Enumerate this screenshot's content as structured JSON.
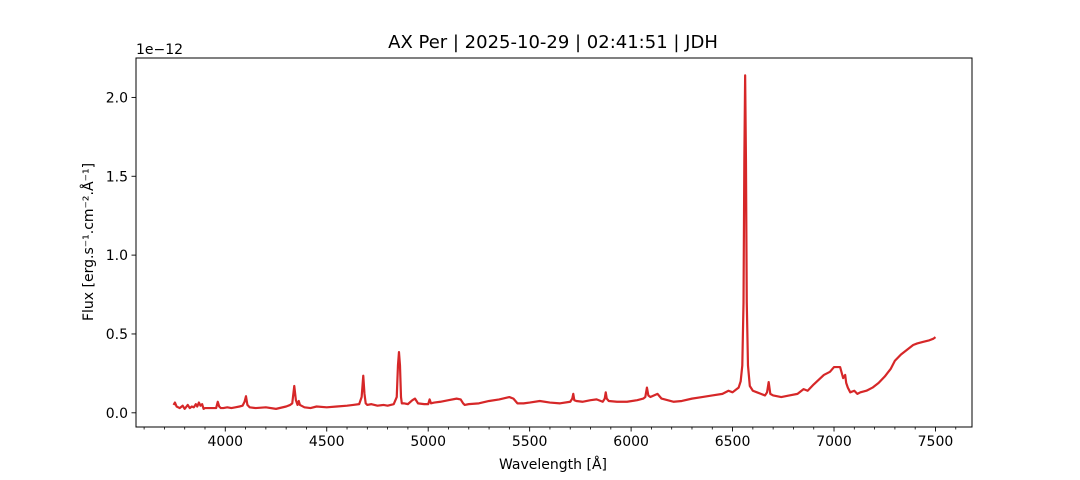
{
  "chart_data": {
    "type": "line",
    "title": "AX Per | 2025-10-29 | 02:41:51 | JDH",
    "xlabel": "Wavelength [Å]",
    "ylabel": "Flux [erg.s⁻¹.cm⁻².Å⁻¹]",
    "offset_text": "1e−12",
    "xlim": [
      3560,
      7680
    ],
    "ylim": [
      -0.09,
      2.25
    ],
    "xticks": [
      4000,
      4500,
      5000,
      5500,
      6000,
      6500,
      7000,
      7500
    ],
    "xtick_labels": [
      "4000",
      "4500",
      "5000",
      "5500",
      "6000",
      "6500",
      "7000",
      "7500"
    ],
    "yticks": [
      0.0,
      0.5,
      1.0,
      1.5,
      2.0
    ],
    "ytick_labels": [
      "0.0",
      "0.5",
      "1.0",
      "1.5",
      "2.0"
    ],
    "x_minor_step": 100,
    "grid": false,
    "line_color": "#d62728",
    "series": [
      {
        "x": [
          3745,
          3752,
          3760,
          3775,
          3790,
          3800,
          3815,
          3825,
          3835,
          3845,
          3855,
          3862,
          3870,
          3878,
          3886,
          3893,
          3900,
          3920,
          3940,
          3955,
          3963,
          3970,
          3978,
          3990,
          4010,
          4030,
          4050,
          4070,
          4085,
          4095,
          4102,
          4109,
          4120,
          4150,
          4200,
          4250,
          4300,
          4320,
          4330,
          4340,
          4348,
          4356,
          4362,
          4368,
          4375,
          4390,
          4420,
          4450,
          4500,
          4550,
          4600,
          4630,
          4660,
          4672,
          4680,
          4686,
          4692,
          4700,
          4720,
          4750,
          4780,
          4800,
          4830,
          4845,
          4851,
          4856,
          4861,
          4866,
          4870,
          4880,
          4900,
          4922,
          4935,
          4950,
          4980,
          5000,
          5007,
          5014,
          5030,
          5060,
          5100,
          5140,
          5160,
          5172,
          5180,
          5200,
          5250,
          5300,
          5350,
          5400,
          5420,
          5440,
          5470,
          5500,
          5550,
          5600,
          5650,
          5700,
          5710,
          5715,
          5720,
          5730,
          5760,
          5800,
          5830,
          5860,
          5870,
          5875,
          5880,
          5890,
          5930,
          5980,
          6030,
          6060,
          6070,
          6078,
          6085,
          6095,
          6130,
          6150,
          6180,
          6210,
          6250,
          6300,
          6350,
          6400,
          6450,
          6480,
          6500,
          6520,
          6530,
          6540,
          6548,
          6554,
          6558,
          6562,
          6566,
          6570,
          6576,
          6585,
          6600,
          6620,
          6640,
          6660,
          6670,
          6678,
          6686,
          6700,
          6740,
          6780,
          6820,
          6850,
          6870,
          6900,
          6950,
          6980,
          7000,
          7030,
          7045,
          7055,
          7060,
          7068,
          7080,
          7100,
          7115,
          7130,
          7160,
          7190,
          7220,
          7250,
          7280,
          7300,
          7330,
          7360,
          7390,
          7410,
          7440,
          7470,
          7490,
          7500
        ],
        "y": [
          0.05,
          0.065,
          0.04,
          0.03,
          0.045,
          0.025,
          0.05,
          0.03,
          0.04,
          0.035,
          0.055,
          0.04,
          0.065,
          0.045,
          0.055,
          0.025,
          0.03,
          0.03,
          0.03,
          0.03,
          0.07,
          0.04,
          0.03,
          0.03,
          0.035,
          0.03,
          0.035,
          0.04,
          0.045,
          0.07,
          0.105,
          0.05,
          0.035,
          0.03,
          0.035,
          0.025,
          0.04,
          0.05,
          0.06,
          0.17,
          0.08,
          0.05,
          0.075,
          0.05,
          0.045,
          0.035,
          0.03,
          0.04,
          0.035,
          0.04,
          0.045,
          0.05,
          0.055,
          0.1,
          0.235,
          0.12,
          0.06,
          0.05,
          0.055,
          0.045,
          0.05,
          0.045,
          0.055,
          0.1,
          0.3,
          0.385,
          0.3,
          0.1,
          0.06,
          0.06,
          0.055,
          0.08,
          0.09,
          0.06,
          0.055,
          0.055,
          0.085,
          0.06,
          0.065,
          0.07,
          0.08,
          0.09,
          0.085,
          0.06,
          0.05,
          0.055,
          0.06,
          0.075,
          0.085,
          0.1,
          0.09,
          0.06,
          0.06,
          0.065,
          0.075,
          0.065,
          0.06,
          0.07,
          0.09,
          0.12,
          0.08,
          0.075,
          0.07,
          0.08,
          0.085,
          0.07,
          0.09,
          0.13,
          0.09,
          0.075,
          0.07,
          0.07,
          0.08,
          0.09,
          0.1,
          0.16,
          0.11,
          0.1,
          0.12,
          0.09,
          0.08,
          0.07,
          0.075,
          0.09,
          0.1,
          0.11,
          0.12,
          0.14,
          0.13,
          0.15,
          0.16,
          0.2,
          0.3,
          0.7,
          1.6,
          2.14,
          1.6,
          0.7,
          0.3,
          0.17,
          0.14,
          0.13,
          0.12,
          0.11,
          0.13,
          0.195,
          0.12,
          0.11,
          0.1,
          0.11,
          0.12,
          0.15,
          0.14,
          0.18,
          0.24,
          0.26,
          0.29,
          0.29,
          0.22,
          0.24,
          0.19,
          0.16,
          0.13,
          0.14,
          0.12,
          0.13,
          0.14,
          0.16,
          0.19,
          0.23,
          0.28,
          0.33,
          0.37,
          0.4,
          0.43,
          0.44,
          0.45,
          0.46,
          0.47,
          0.48
        ]
      }
    ]
  }
}
